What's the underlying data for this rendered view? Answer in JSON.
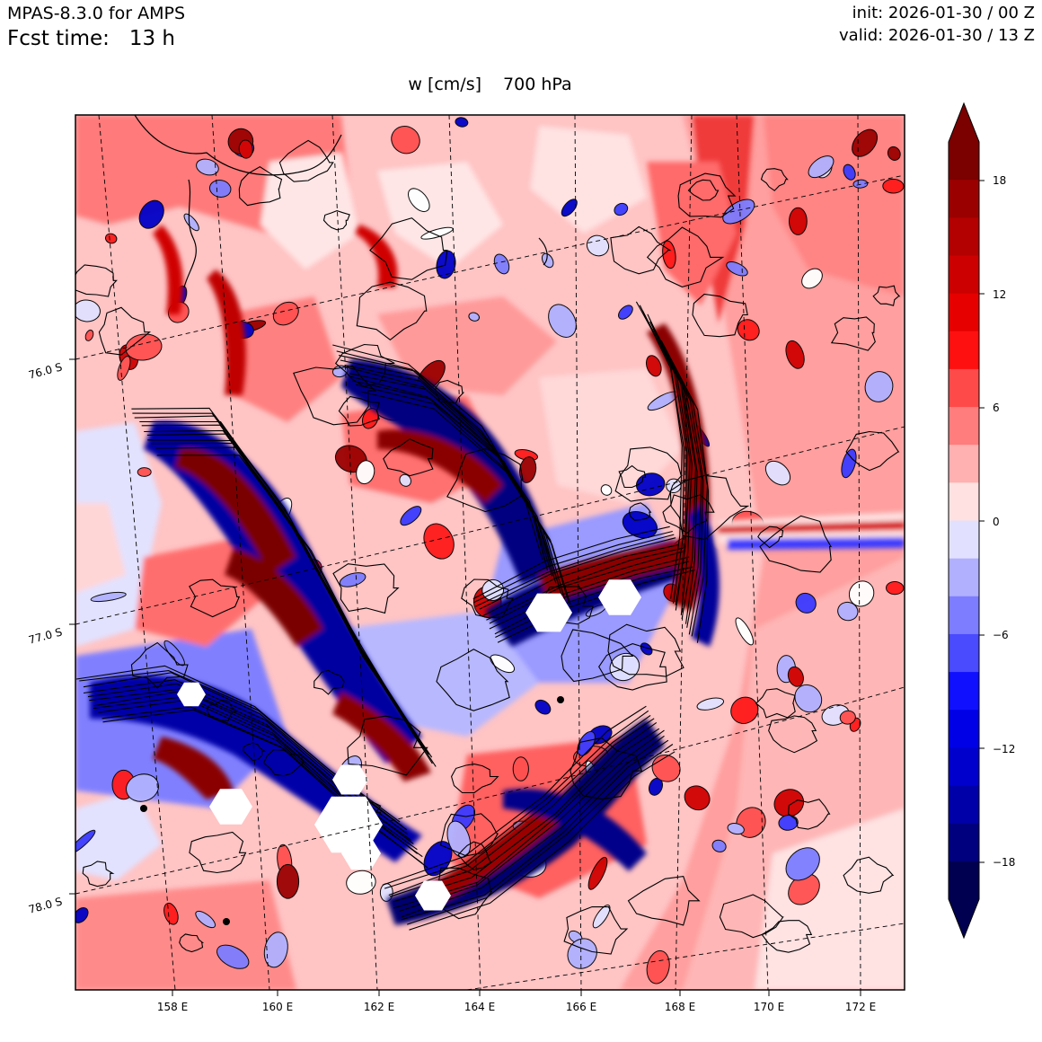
{
  "header": {
    "model": "MPAS-8.3.0 for AMPS",
    "fcst_label": "Fcst time:",
    "fcst_value": "13 h",
    "init": "init: 2026-01-30 / 00 Z",
    "valid": "valid: 2026-01-30 / 13 Z"
  },
  "map": {
    "variable": "w [cm/s]",
    "level": "700 hPa",
    "lon_labels": [
      "158 E",
      "160 E",
      "162 E",
      "164 E",
      "166 E",
      "168 E",
      "170 E",
      "172 E"
    ],
    "lat_labels": [
      "76.0 S",
      "77.0 S",
      "78.0 S"
    ],
    "projection": "polar-stereographic",
    "gridlines": "dashed"
  },
  "colorbar": {
    "ticks": [
      "18",
      "12",
      "6",
      "0",
      "−6",
      "−12",
      "−18"
    ],
    "levels": [
      -20,
      -18,
      -16,
      -14,
      -12,
      -10,
      -8,
      -6,
      -4,
      -2,
      0,
      2,
      4,
      6,
      8,
      10,
      12,
      14,
      16,
      18,
      20
    ],
    "colors_top_to_bottom": [
      "#7b0000",
      "#9b0000",
      "#b30000",
      "#cc0000",
      "#e60000",
      "#ff1010",
      "#ff4a4a",
      "#ff7d7d",
      "#ffb0b0",
      "#ffe1e1",
      "#e1e1ff",
      "#b0b0ff",
      "#7d7dff",
      "#4a4aff",
      "#1010ff",
      "#0000e6",
      "#0000cc",
      "#0000a8",
      "#00007e",
      "#000050"
    ],
    "extend": "both",
    "orientation": "vertical"
  }
}
